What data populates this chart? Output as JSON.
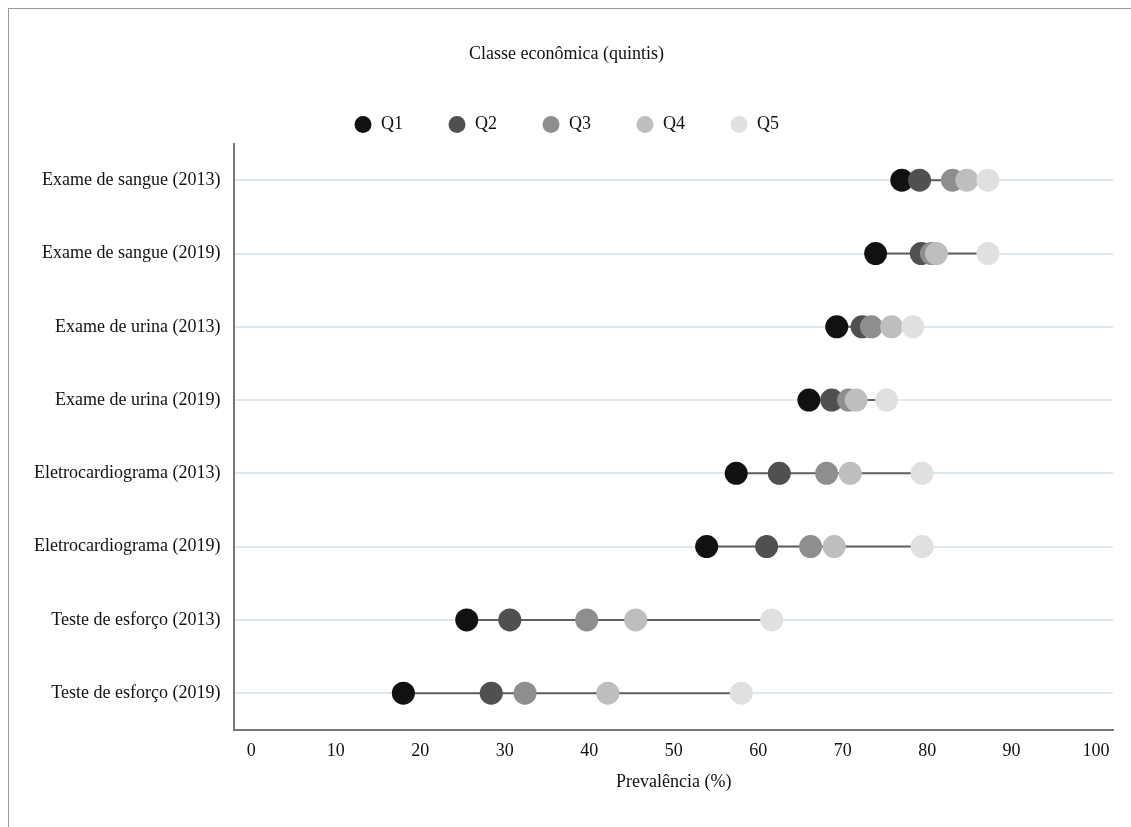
{
  "chart_data": {
    "type": "scatter",
    "orientation": "horizontal",
    "xlabel": "Prevalência (%)",
    "legend_title": "Classe econômica (quintis)",
    "legend": "top",
    "grid": "y",
    "marker": "circle",
    "categories": [
      "Exame de sangue (2013)",
      "Exame de sangue (2019)",
      "Exame de urina (2013)",
      "Exame de urina (2019)",
      "Eletrocardiograma (2013)",
      "Eletrocardiograma (2019)",
      "Teste de esforço (2013)",
      "Teste de esforço (2019)"
    ],
    "xlim": [
      -2,
      102
    ],
    "xticks": [
      0,
      10,
      20,
      30,
      40,
      50,
      60,
      70,
      80,
      90,
      100
    ],
    "series": [
      {
        "name": "Q1",
        "color": "#111111",
        "values": [
          77.0,
          73.9,
          69.3,
          66.0,
          57.4,
          53.9,
          25.5,
          18.0
        ]
      },
      {
        "name": "Q2",
        "color": "#505050",
        "values": [
          79.1,
          79.3,
          72.3,
          68.7,
          62.5,
          61.0,
          30.6,
          28.4
        ]
      },
      {
        "name": "Q3",
        "color": "#8e8e8e",
        "values": [
          83.0,
          80.5,
          73.4,
          70.7,
          68.1,
          66.2,
          39.7,
          32.4
        ]
      },
      {
        "name": "Q4",
        "color": "#bebebe",
        "values": [
          84.7,
          81.1,
          75.8,
          71.6,
          70.9,
          69.0,
          45.5,
          42.2
        ]
      },
      {
        "name": "Q5",
        "color": "#e0e0e0",
        "values": [
          87.2,
          87.2,
          78.3,
          75.2,
          79.4,
          79.4,
          61.6,
          58.0
        ]
      }
    ]
  }
}
